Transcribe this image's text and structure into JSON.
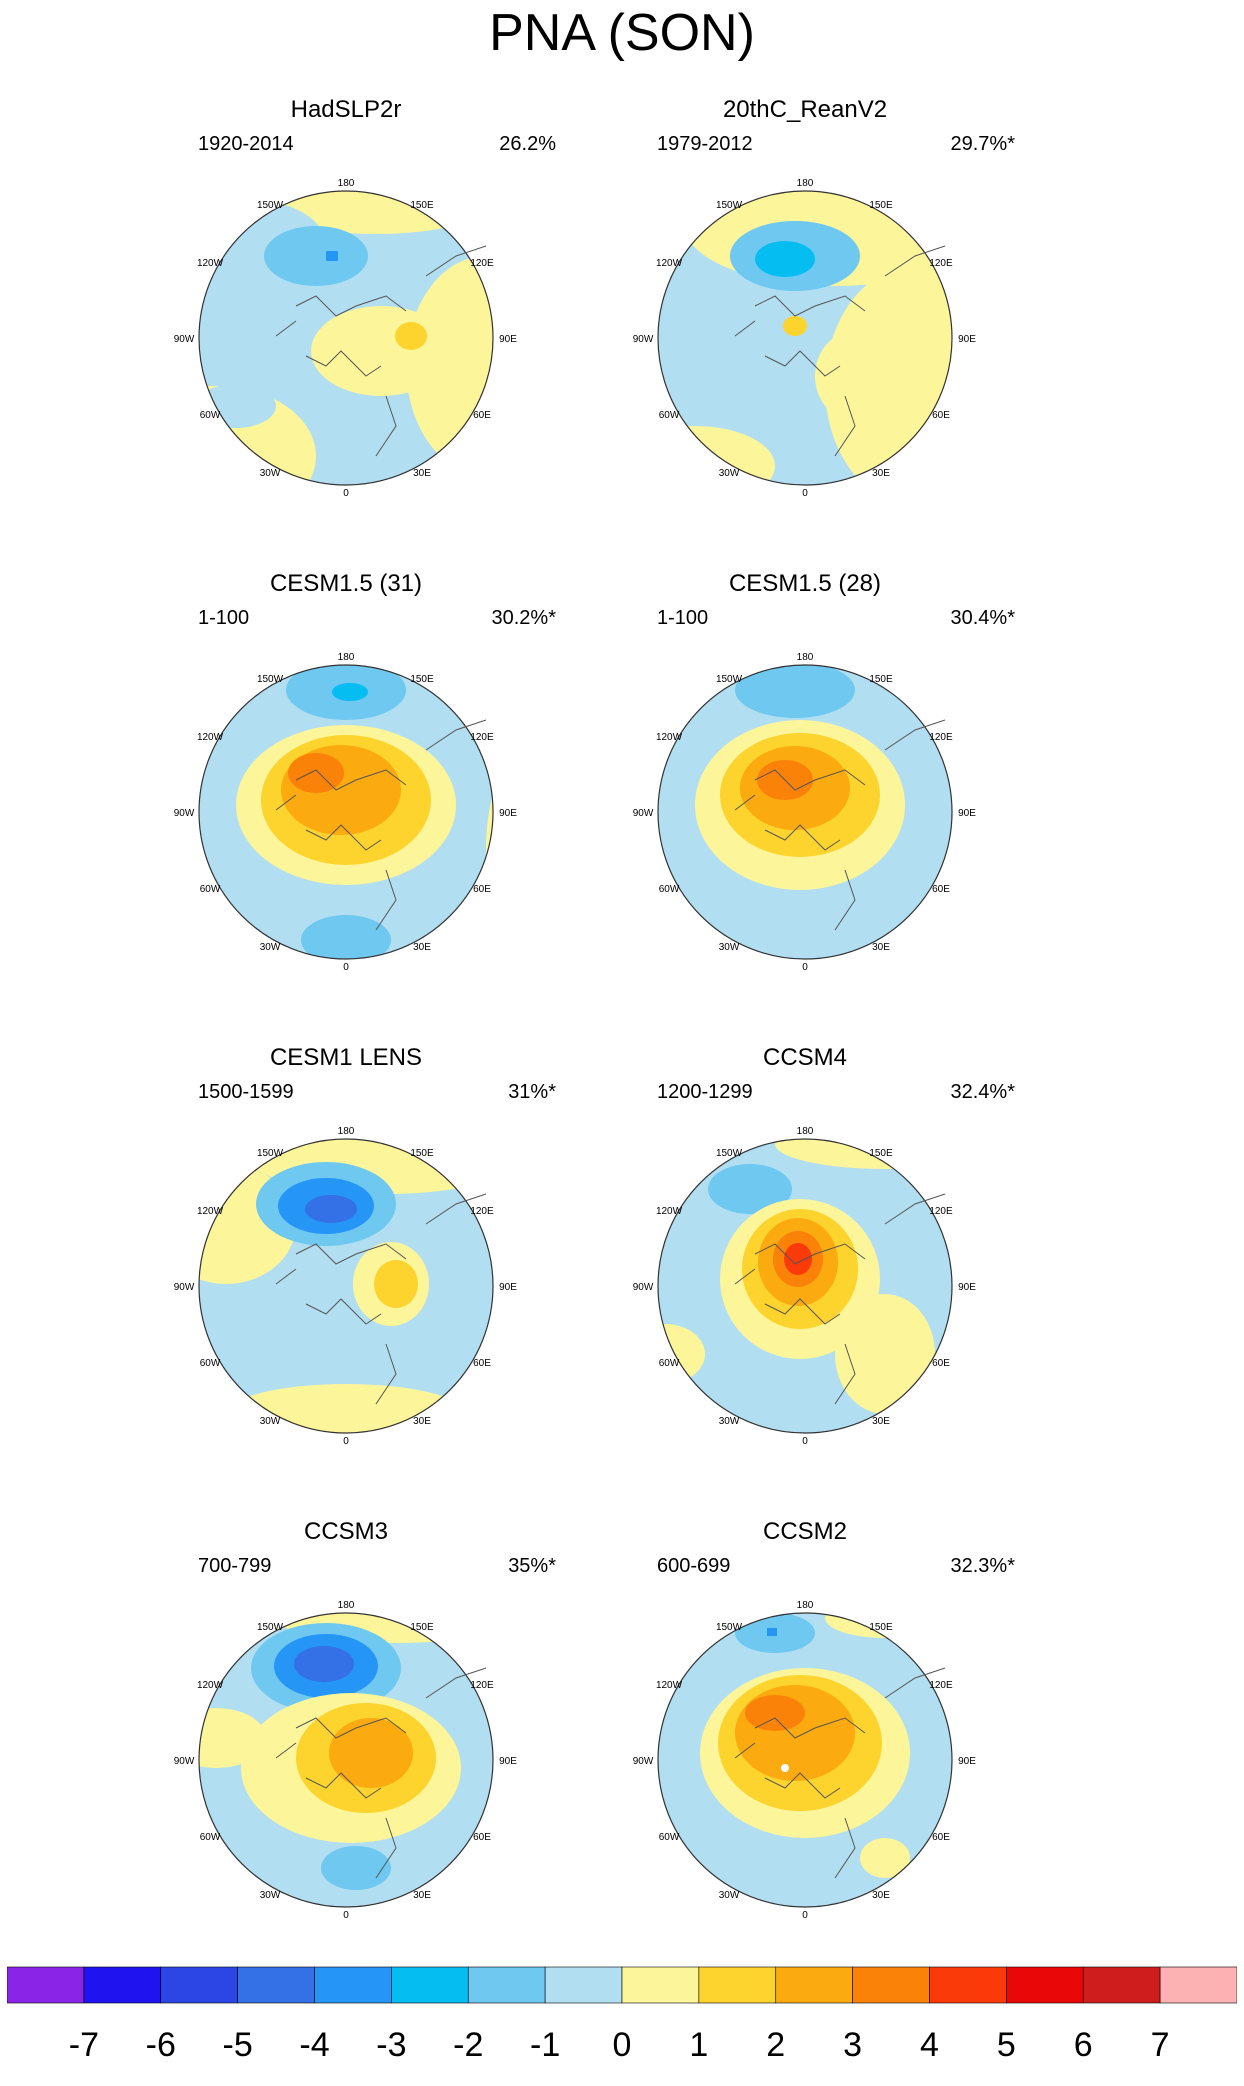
{
  "figure": {
    "title": "PNA (SON)",
    "panels": [
      {
        "title": "HadSLP2r",
        "period": "1920-2014",
        "variance": "26.2%"
      },
      {
        "title": "20thC_ReanV2",
        "period": "1979-2012",
        "variance": "29.7%*"
      },
      {
        "title": "CESM1.5 (31)",
        "period": "1-100",
        "variance": "30.2%*"
      },
      {
        "title": "CESM1.5 (28)",
        "period": "1-100",
        "variance": "30.4%*"
      },
      {
        "title": "CESM1 LENS",
        "period": "1500-1599",
        "variance": "31%*"
      },
      {
        "title": "CCSM4",
        "period": "1200-1299",
        "variance": "32.4%*"
      },
      {
        "title": "CCSM3",
        "period": "700-799",
        "variance": "35%*"
      },
      {
        "title": "CCSM2",
        "period": "600-699",
        "variance": "32.3%*"
      }
    ],
    "longitude_labels": [
      "180",
      "150E",
      "120E",
      "90E",
      "60E",
      "30E",
      "0",
      "30W",
      "60W",
      "90W",
      "120W",
      "150W"
    ]
  },
  "colorbar": {
    "labels": [
      "-7",
      "-6",
      "-5",
      "-4",
      "-3",
      "-2",
      "-1",
      "0",
      "1",
      "2",
      "3",
      "4",
      "5",
      "6",
      "7"
    ],
    "colors": [
      "#8a25e8",
      "#1f14f0",
      "#2c46e6",
      "#3470e6",
      "#2596f5",
      "#06bdf2",
      "#6ec8f0",
      "#b2def2",
      "#fcf59a",
      "#fdd42e",
      "#fbaa10",
      "#fb8209",
      "#fb3a09",
      "#ea0707",
      "#cf1c1c",
      "#fcb2b2"
    ]
  }
}
